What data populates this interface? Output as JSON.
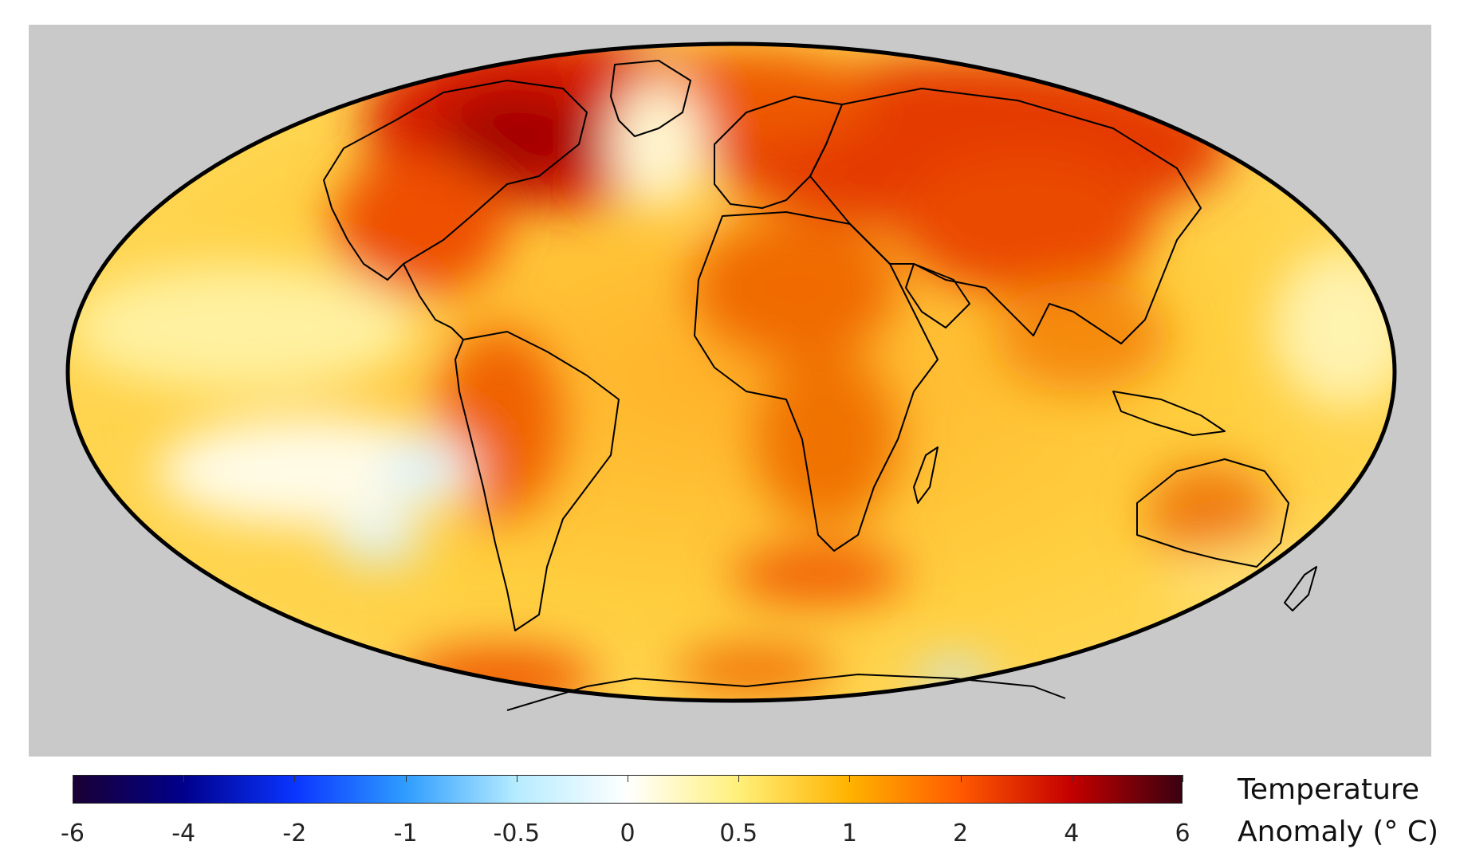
{
  "map": {
    "projection": "mollweide",
    "background_color": "#c9c9c9",
    "outline_color": "#000000"
  },
  "legend": {
    "title_line1": "Temperature",
    "title_line2": "Anomaly (° C)",
    "ticks": [
      "-6",
      "-4",
      "-2",
      "-1",
      "-0.5",
      "0",
      "0.5",
      "1",
      "2",
      "4",
      "6"
    ],
    "colors": [
      "#1a0033",
      "#00008c",
      "#0a35ff",
      "#2f9dff",
      "#b6ecff",
      "#ffffff",
      "#fff07a",
      "#ffb300",
      "#ff5a00",
      "#c40000",
      "#3a0010"
    ]
  }
}
